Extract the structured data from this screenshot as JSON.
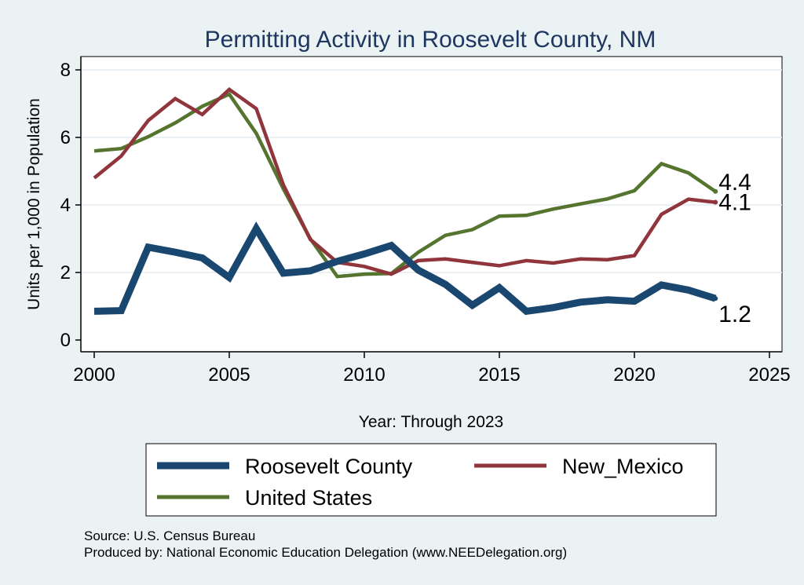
{
  "chart_data": {
    "type": "line",
    "title": "Permitting Activity in Roosevelt County, NM",
    "xlabel": "Year: Through 2023",
    "ylabel": "Units per 1,000 in Population",
    "xlim": [
      2000,
      2025
    ],
    "ylim": [
      0,
      8
    ],
    "xticks": [
      "2000",
      "2005",
      "2010",
      "2015",
      "2020",
      "2025"
    ],
    "yticks": [
      "0",
      "2",
      "4",
      "6",
      "8"
    ],
    "grid": true,
    "legend_position": "bottom",
    "x": [
      2000,
      2001,
      2002,
      2003,
      2004,
      2005,
      2006,
      2007,
      2008,
      2009,
      2010,
      2011,
      2012,
      2013,
      2014,
      2015,
      2016,
      2017,
      2018,
      2019,
      2020,
      2021,
      2022,
      2023
    ],
    "series": [
      {
        "name": "Roosevelt County",
        "color": "#1a476f",
        "values": [
          0.85,
          0.87,
          2.75,
          2.6,
          2.43,
          1.85,
          3.3,
          1.98,
          2.05,
          2.33,
          2.55,
          2.8,
          2.07,
          1.65,
          1.03,
          1.55,
          0.85,
          0.96,
          1.12,
          1.19,
          1.15,
          1.63,
          1.48,
          1.23
        ],
        "end_label": "1.2"
      },
      {
        "name": "New_Mexico",
        "color": "#90353b",
        "values": [
          4.8,
          5.45,
          6.5,
          7.15,
          6.68,
          7.42,
          6.85,
          4.6,
          2.98,
          2.3,
          2.18,
          1.95,
          2.35,
          2.4,
          2.3,
          2.2,
          2.35,
          2.28,
          2.4,
          2.38,
          2.5,
          3.72,
          4.17,
          4.08
        ],
        "end_label": "4.1"
      },
      {
        "name": "United States",
        "color": "#55752f",
        "values": [
          5.6,
          5.67,
          6.02,
          6.43,
          6.92,
          7.28,
          6.12,
          4.48,
          3.0,
          1.88,
          1.95,
          1.97,
          2.6,
          3.1,
          3.27,
          3.67,
          3.69,
          3.88,
          4.03,
          4.18,
          4.42,
          5.22,
          4.95,
          4.4
        ],
        "end_label": "4.4"
      }
    ]
  },
  "notes": {
    "source": "Source: U.S. Census Bureau",
    "produced_by": "Produced by: National Economic Education Delegation (www.NEEDelegation.org)"
  }
}
